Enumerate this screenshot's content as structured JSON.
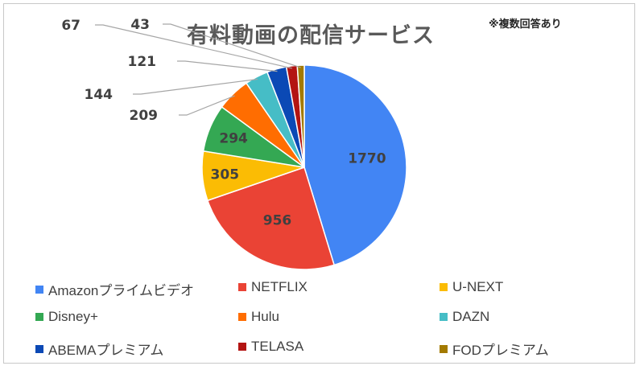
{
  "chart_data": {
    "type": "pie",
    "title": "有料動画の配信サービス",
    "note": "※複数回答あり",
    "categories": [
      "Amazonプライムビデオ",
      "NETFLIX",
      "U-NEXT",
      "Disney+",
      "Hulu",
      "DAZN",
      "ABEMAプレミアム",
      "TELASA",
      "FODプレミアム"
    ],
    "values": [
      1770,
      956,
      305,
      294,
      209,
      144,
      121,
      67,
      43
    ],
    "colors": [
      "#4285f4",
      "#ea4335",
      "#fbbc04",
      "#34a853",
      "#ff6d01",
      "#46bdc6",
      "#0b49b5",
      "#b31412",
      "#a37a00"
    ],
    "legend_position": "bottom"
  }
}
